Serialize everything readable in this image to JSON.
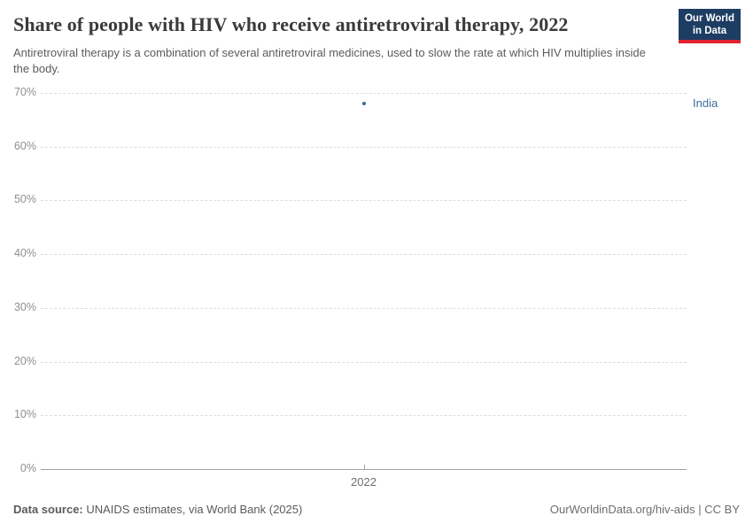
{
  "header": {
    "title": "Share of people with HIV who receive antiretroviral therapy, 2022",
    "subtitle": "Antiretroviral therapy is a combination of several antiretroviral medicines, used to slow the rate at which HIV multiplies inside the body.",
    "logo_line1": "Our World",
    "logo_line2": "in Data"
  },
  "chart_data": {
    "type": "scatter",
    "title": "Share of people with HIV who receive antiretroviral therapy, 2022",
    "x": [
      2022
    ],
    "series": [
      {
        "name": "India",
        "values": [
          68
        ],
        "color": "#3c6a9c"
      }
    ],
    "xlabel": "",
    "ylabel": "",
    "ylim": [
      0,
      70
    ],
    "yticks": [
      0,
      10,
      20,
      30,
      40,
      50,
      60,
      70
    ],
    "ytick_suffix": "%",
    "xticks": [
      "2022"
    ],
    "grid": "horizontal-dashed",
    "legend_position": "entity-label-right"
  },
  "footer": {
    "source_label": "Data source:",
    "source_text": " UNAIDS estimates, via World Bank (2025)",
    "attribution": "OurWorldinData.org/hiv-aids | CC BY"
  },
  "colors": {
    "accent": "#3c6a9c",
    "logo_bg": "#1d3d63",
    "logo_red": "#e0232e",
    "grid": "#dddddd",
    "axis": "#a1a1a1",
    "ytick": "#8f8f8f",
    "title": "#3a3a3a",
    "subtitle": "#5b5b5b"
  }
}
